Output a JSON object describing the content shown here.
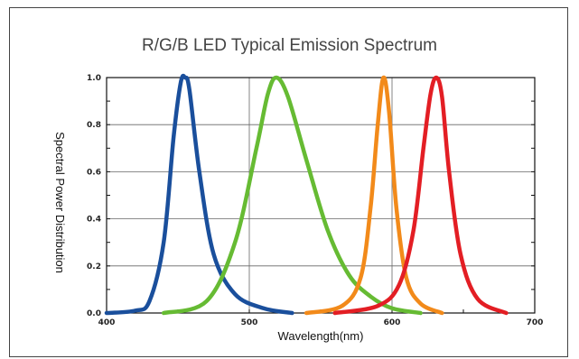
{
  "chart_data": {
    "type": "line",
    "title": "R/G/B LED Typical Emission Spectrum",
    "xlabel": "Wavelength(nm)",
    "ylabel": "Spectral Power Distribution",
    "xlim": [
      400,
      700
    ],
    "ylim": [
      0,
      1.0
    ],
    "x_ticks": [
      "400",
      "500",
      "600",
      "700"
    ],
    "y_ticks": [
      "0.0",
      "0.2",
      "0.4",
      "0.6",
      "0.8",
      "1.0"
    ],
    "grid": true,
    "series": [
      {
        "color": "#1a4f9c",
        "points": [
          [
            400,
            0.0
          ],
          [
            420,
            0.01
          ],
          [
            430,
            0.05
          ],
          [
            440,
            0.3
          ],
          [
            447,
            0.75
          ],
          [
            452,
            0.98
          ],
          [
            455,
            1.0
          ],
          [
            458,
            0.95
          ],
          [
            465,
            0.6
          ],
          [
            475,
            0.25
          ],
          [
            490,
            0.08
          ],
          [
            510,
            0.02
          ],
          [
            530,
            0.0
          ]
        ]
      },
      {
        "color": "#66bb33",
        "points": [
          [
            440,
            0.0
          ],
          [
            470,
            0.05
          ],
          [
            490,
            0.3
          ],
          [
            505,
            0.7
          ],
          [
            513,
            0.93
          ],
          [
            519,
            1.0
          ],
          [
            527,
            0.92
          ],
          [
            540,
            0.65
          ],
          [
            555,
            0.35
          ],
          [
            570,
            0.16
          ],
          [
            585,
            0.07
          ],
          [
            600,
            0.02
          ],
          [
            620,
            0.0
          ]
        ]
      },
      {
        "color": "#f28a1a",
        "points": [
          [
            540,
            0.0
          ],
          [
            565,
            0.03
          ],
          [
            578,
            0.15
          ],
          [
            585,
            0.45
          ],
          [
            590,
            0.8
          ],
          [
            594,
            1.0
          ],
          [
            598,
            0.85
          ],
          [
            603,
            0.45
          ],
          [
            610,
            0.15
          ],
          [
            620,
            0.04
          ],
          [
            635,
            0.0
          ]
        ]
      },
      {
        "color": "#e31e24",
        "points": [
          [
            560,
            0.0
          ],
          [
            590,
            0.03
          ],
          [
            605,
            0.12
          ],
          [
            615,
            0.35
          ],
          [
            622,
            0.7
          ],
          [
            627,
            0.93
          ],
          [
            631,
            1.0
          ],
          [
            635,
            0.92
          ],
          [
            640,
            0.6
          ],
          [
            648,
            0.25
          ],
          [
            660,
            0.06
          ],
          [
            680,
            0.0
          ]
        ]
      }
    ]
  }
}
